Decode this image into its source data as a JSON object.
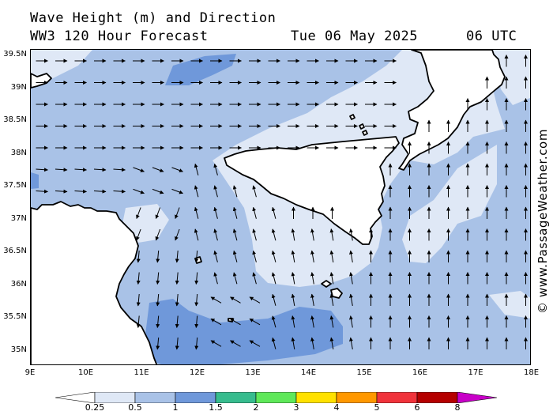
{
  "header": {
    "title": "Wave Height (m) and Direction",
    "subtitle": "WW3 120 Hour Forecast",
    "date": "Tue 06 May 2025",
    "time": "06 UTC"
  },
  "credit": "© www.PassageWeather.com",
  "map": {
    "region": "Sicily / Malta / Central Mediterranean",
    "lat_labels": [
      "39.5N",
      "39N",
      "38.5N",
      "38N",
      "37.5N",
      "37N",
      "36.5N",
      "36N",
      "35.5N",
      "35N"
    ],
    "lon_labels": [
      "9E",
      "10E",
      "11E",
      "12E",
      "13E",
      "14E",
      "15E",
      "16E",
      "17E",
      "18E"
    ],
    "lat_range": [
      34.8,
      39.6
    ],
    "lon_range": [
      9.0,
      18.0
    ],
    "land_color": "#ffffff",
    "wave_direction_regions": [
      {
        "area": "north of Sicily (Tyrrhenian Sea)",
        "direction": "east"
      },
      {
        "area": "south of Sicily / Ionian Sea",
        "direction": "north"
      },
      {
        "area": "Strait of Sicily",
        "direction": "north-northeast"
      },
      {
        "area": "off Tunisian coast",
        "direction": "south-southwest"
      }
    ]
  },
  "legend": {
    "labels": [
      "0.25",
      "0.5",
      "1",
      "1.5",
      "2",
      "3",
      "4",
      "5",
      "6",
      "8"
    ],
    "colors": [
      "#ffffff",
      "#dfe8f6",
      "#a9c2e7",
      "#6f98da",
      "#37bc8e",
      "#5fe85a",
      "#ffe100",
      "#ff9800",
      "#f0333b",
      "#b50000",
      "#c800c8"
    ]
  }
}
